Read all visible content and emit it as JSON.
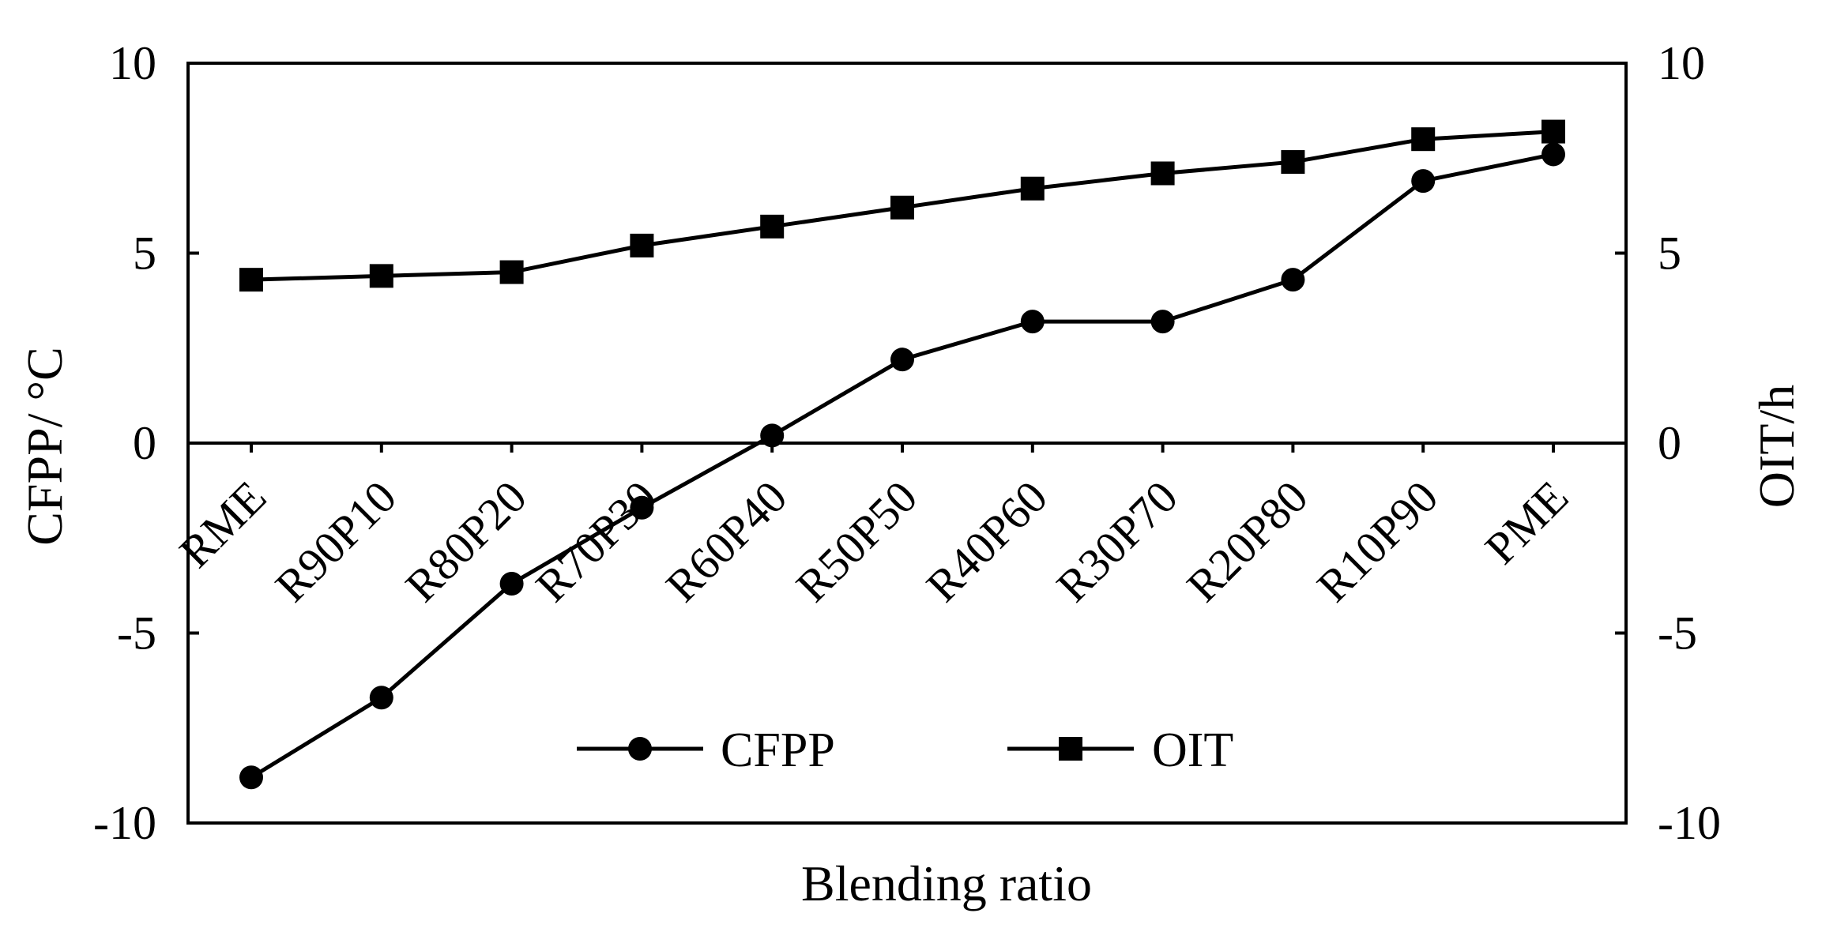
{
  "chart_data": {
    "type": "line",
    "categories": [
      "RME",
      "R90P10",
      "R80P20",
      "R70P30",
      "R60P40",
      "R50P50",
      "R40P60",
      "R30P70",
      "R20P80",
      "R10P90",
      "PME"
    ],
    "series": [
      {
        "name": "CFPP",
        "axis": "left",
        "marker": "circle",
        "values": [
          -8.8,
          -6.7,
          -3.7,
          -1.7,
          0.2,
          2.2,
          3.2,
          3.2,
          4.3,
          6.9,
          7.6
        ]
      },
      {
        "name": "OIT",
        "axis": "right",
        "marker": "square",
        "values": [
          4.3,
          4.4,
          4.5,
          5.2,
          5.7,
          6.2,
          6.7,
          7.1,
          7.4,
          8.0,
          8.2
        ]
      }
    ],
    "xlabel": "Blending ratio",
    "ylabel": "CFPP/ °C",
    "y2label": "OIT/h",
    "ylim": [
      -10,
      10
    ],
    "y2lim": [
      -10,
      10
    ],
    "yticks": [
      "-10",
      "-5",
      "0",
      "5",
      "10"
    ],
    "y2ticks": [
      "-10",
      "-5",
      "0",
      "5",
      "10"
    ],
    "legend": {
      "position": "bottom-center",
      "entries": [
        "CFPP",
        "OIT"
      ]
    },
    "colors": {
      "line": "#000000",
      "background": "#ffffff"
    },
    "grid": false
  }
}
